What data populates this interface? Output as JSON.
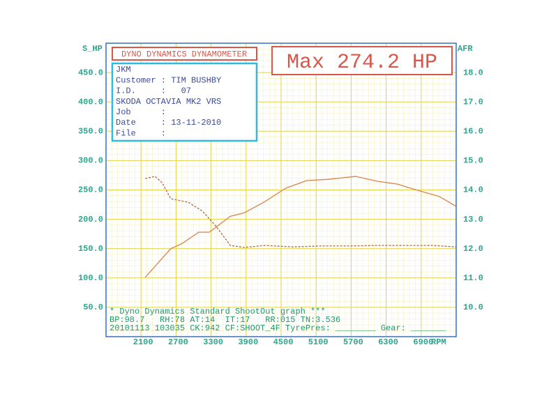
{
  "chart_data": {
    "type": "line",
    "title": "DYNO DYNAMICS DYNAMOMETER",
    "annotation": "Max 274.2 HP",
    "y_label": "S_HP",
    "y2_label": "AFR",
    "x_label": "RPM",
    "info_box": [
      "JKM",
      "Customer : TIM BUSHBY",
      "I.D.     :   07",
      "SKODA OCTAVIA MK2 VRS",
      "Job      :",
      "Date     : 13-11-2010",
      "File     :"
    ],
    "footer": [
      "* Dyno Dynamics Standard ShootOut graph ***",
      "BP:98.7   RH:78 AT:14  IT:17   RR:015 TN:3.536",
      "20101113 103035 CK:942 CF:SHOOT_4F TyrePres: ________ Gear: _______"
    ],
    "xlim": [
      1500,
      7500
    ],
    "xticks": [
      2100,
      2700,
      3300,
      3900,
      4500,
      5100,
      5700,
      6300,
      6900
    ],
    "ylim": [
      0,
      500
    ],
    "yticks": [
      {
        "value": 50,
        "label": "50.0"
      },
      {
        "value": 100,
        "label": "100.0"
      },
      {
        "value": 150,
        "label": "150.0"
      },
      {
        "value": 200,
        "label": "200.0"
      },
      {
        "value": 250,
        "label": "250.0"
      },
      {
        "value": 300,
        "label": "300.0"
      },
      {
        "value": 350,
        "label": "350.0"
      },
      {
        "value": 400,
        "label": "400.0"
      },
      {
        "value": 450,
        "label": "450.0"
      }
    ],
    "y2lim": [
      9,
      19
    ],
    "y2ticks": [
      {
        "value": 10,
        "label": "10.0"
      },
      {
        "value": 11,
        "label": "11.0"
      },
      {
        "value": 12,
        "label": "12.0"
      },
      {
        "value": 13,
        "label": "13.0"
      },
      {
        "value": 14,
        "label": "14.0"
      },
      {
        "value": 15,
        "label": "15.0"
      },
      {
        "value": 16,
        "label": "16.0"
      },
      {
        "value": 17,
        "label": "17.0"
      },
      {
        "value": 18,
        "label": "18.0"
      }
    ],
    "grid": true,
    "series": [
      {
        "color": "#d9824a",
        "dashed": false,
        "x": [
          2170,
          2610,
          2790,
          3090,
          3270,
          3630,
          3870,
          4220,
          4580,
          4940,
          5300,
          5780,
          6140,
          6490,
          6850,
          7210,
          7500
        ],
        "values": [
          101,
          150,
          158,
          178,
          178,
          205,
          211,
          230,
          253,
          266,
          268,
          273,
          265,
          260,
          249,
          239,
          222
        ]
      },
      {
        "color": "#a86a40",
        "dashed": true,
        "axis": "y2",
        "x": [
          2170,
          2340,
          2460,
          2610,
          2910,
          3150,
          3390,
          3630,
          3870,
          4220,
          4700,
          5180,
          5660,
          6140,
          6610,
          7090,
          7500
        ],
        "values": [
          14.39,
          14.46,
          14.25,
          13.7,
          13.58,
          13.28,
          12.75,
          12.11,
          12.04,
          12.11,
          12.06,
          12.09,
          12.09,
          12.11,
          12.11,
          12.11,
          12.06
        ]
      }
    ]
  }
}
